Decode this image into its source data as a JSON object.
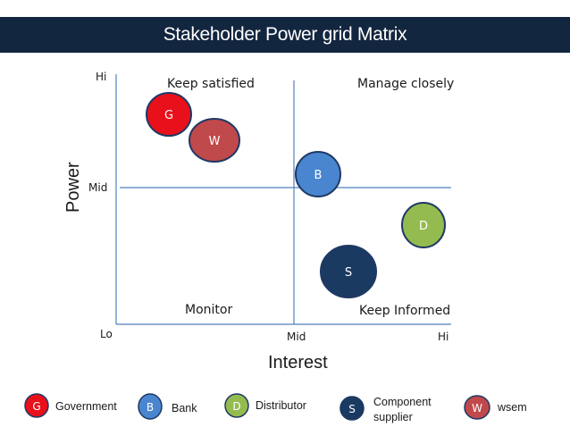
{
  "title": "Stakeholder Power grid Matrix",
  "axes": {
    "y_title": "Power",
    "x_title": "Interest",
    "y_ticks": {
      "hi": "Hi",
      "mid": "Mid",
      "lo": "Lo"
    },
    "x_ticks": {
      "mid": "Mid",
      "hi": "Hi"
    }
  },
  "quadrants": {
    "top_left": "Keep satisfied",
    "top_right": "Manage closely",
    "bottom_left": "Monitor",
    "bottom_right": "Keep Informed"
  },
  "stakeholders": [
    {
      "letter": "G",
      "name": "Government",
      "color": "#e8101a"
    },
    {
      "letter": "W",
      "name": "wsem",
      "color": "#c0494b"
    },
    {
      "letter": "B",
      "name": "Bank",
      "color": "#4a86cf"
    },
    {
      "letter": "D",
      "name": "Distributor",
      "color": "#94bb4f"
    },
    {
      "letter": "S",
      "name": "Component supplier",
      "color": "#1a3a62"
    }
  ],
  "legend": [
    {
      "letter": "G",
      "label": "Government",
      "color": "#e8101a"
    },
    {
      "letter": "B",
      "label": "Bank",
      "color": "#4a86cf"
    },
    {
      "letter": "D",
      "label": "Distributor",
      "color": "#94bb4f"
    },
    {
      "letter": "S",
      "label_line1": "Component",
      "label_line2": "supplier",
      "color": "#1a3a62"
    },
    {
      "letter": "W",
      "label": "wsem",
      "color": "#c0494b"
    }
  ]
}
